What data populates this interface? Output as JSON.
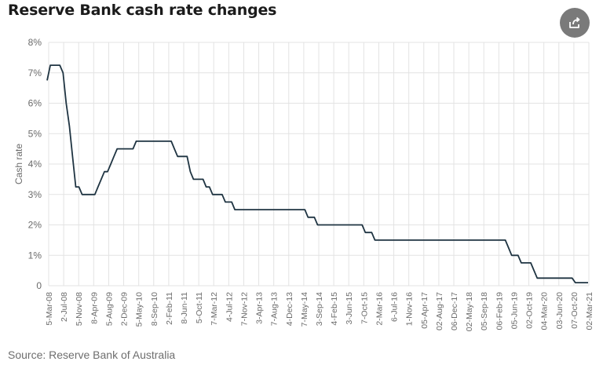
{
  "title": "Reserve Bank cash rate changes",
  "source": "Source: Reserve Bank of Australia",
  "share_button_icon": "share-icon",
  "colors": {
    "line": "#1f3442",
    "grid": "#e3e3e3",
    "axis_text": "#6b6b6b"
  },
  "chart_data": {
    "type": "line",
    "ylabel": "Cash rate",
    "xlabel": "",
    "ylim": [
      0,
      8
    ],
    "grid": true,
    "y_ticks": [
      "0",
      "1%",
      "2%",
      "3%",
      "4%",
      "5%",
      "6%",
      "7%",
      "8%"
    ],
    "x_ticks": [
      "5-Mar-08",
      "2-Jul-08",
      "5-Nov-08",
      "8-Apr-09",
      "5-Aug-09",
      "2-Dec-09",
      "5-May-10",
      "8-Sep-10",
      "2-Feb-11",
      "8-Jun-11",
      "5-Oct-11",
      "7-Mar-12",
      "4-Jul-12",
      "7-Nov-12",
      "3-Apr-13",
      "7-Aug-13",
      "4-Dec-13",
      "7-May-14",
      "3-Sep-14",
      "4-Feb-15",
      "3-Jun-15",
      "7-Oct-15",
      "2-Mar-16",
      "6-Jul-16",
      "1-Nov-16",
      "05-Apr-17",
      "02-Aug-17",
      "06-Dec-17",
      "02-May-18",
      "05-Sep-18",
      "06-Feb-19",
      "05-Jun-19",
      "02-Oct-19",
      "04-Mar-20",
      "03-Jun-20",
      "07-Oct-20",
      "02-Mar-21"
    ],
    "series": [
      {
        "values": [
          6.75,
          7.25,
          7.25,
          7.25,
          7.25,
          7.0,
          6.0,
          5.25,
          4.25,
          3.25,
          3.25,
          3.0,
          3.0,
          3.0,
          3.0,
          3.0,
          3.25,
          3.5,
          3.75,
          3.75,
          4.0,
          4.25,
          4.5,
          4.5,
          4.5,
          4.5,
          4.5,
          4.5,
          4.75,
          4.75,
          4.75,
          4.75,
          4.75,
          4.75,
          4.75,
          4.75,
          4.75,
          4.75,
          4.75,
          4.75,
          4.5,
          4.25,
          4.25,
          4.25,
          4.25,
          3.75,
          3.5,
          3.5,
          3.5,
          3.5,
          3.25,
          3.25,
          3.0,
          3.0,
          3.0,
          3.0,
          2.75,
          2.75,
          2.75,
          2.5,
          2.5,
          2.5,
          2.5,
          2.5,
          2.5,
          2.5,
          2.5,
          2.5,
          2.5,
          2.5,
          2.5,
          2.5,
          2.5,
          2.5,
          2.5,
          2.5,
          2.5,
          2.5,
          2.5,
          2.5,
          2.5,
          2.5,
          2.25,
          2.25,
          2.25,
          2.0,
          2.0,
          2.0,
          2.0,
          2.0,
          2.0,
          2.0,
          2.0,
          2.0,
          2.0,
          2.0,
          2.0,
          2.0,
          2.0,
          2.0,
          1.75,
          1.75,
          1.75,
          1.5,
          1.5,
          1.5,
          1.5,
          1.5,
          1.5,
          1.5,
          1.5,
          1.5,
          1.5,
          1.5,
          1.5,
          1.5,
          1.5,
          1.5,
          1.5,
          1.5,
          1.5,
          1.5,
          1.5,
          1.5,
          1.5,
          1.5,
          1.5,
          1.5,
          1.5,
          1.5,
          1.5,
          1.5,
          1.5,
          1.5,
          1.5,
          1.5,
          1.5,
          1.5,
          1.5,
          1.5,
          1.5,
          1.5,
          1.5,
          1.5,
          1.5,
          1.25,
          1.0,
          1.0,
          1.0,
          0.75,
          0.75,
          0.75,
          0.75,
          0.5,
          0.25,
          0.25,
          0.25,
          0.25,
          0.25,
          0.25,
          0.25,
          0.25,
          0.25,
          0.25,
          0.25,
          0.25,
          0.1,
          0.1,
          0.1,
          0.1,
          0.1
        ]
      }
    ]
  }
}
